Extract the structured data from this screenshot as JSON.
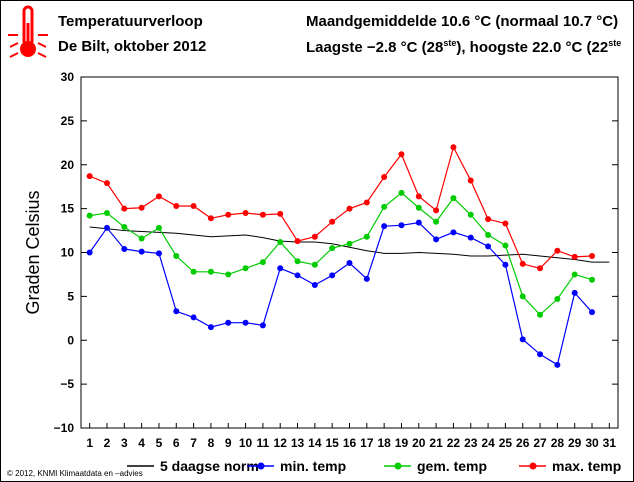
{
  "header": {
    "title": "Temperatuurverloop",
    "subtitle": "De Bilt, oktober 2012",
    "month_avg": "Maandgemiddelde 10.6 °C (normaal 10.7 °C)",
    "extremes_a": "Laagste −2.8 °C (28",
    "extremes_sup1": "ste",
    "extremes_b": "), hoogste 22.0 °C (22",
    "extremes_sup2": "ste"
  },
  "footer": {
    "copyright": "© 2012, KNMI Klimaatdata en –advies"
  },
  "colors": {
    "min": "#0000ff",
    "gem": "#00cc00",
    "max": "#ff0000",
    "norm": "#000000",
    "thermometer": "#ff0000"
  },
  "chart_data": {
    "type": "line",
    "ylabel": "Graden Celsius",
    "xlabel": "",
    "ylim": [
      -10,
      30
    ],
    "yticks": [
      -10,
      -5,
      0,
      5,
      10,
      15,
      20,
      25,
      30
    ],
    "x": [
      1,
      2,
      3,
      4,
      5,
      6,
      7,
      8,
      9,
      10,
      11,
      12,
      13,
      14,
      15,
      16,
      17,
      18,
      19,
      20,
      21,
      22,
      23,
      24,
      25,
      26,
      27,
      28,
      29,
      30,
      31
    ],
    "grid": false,
    "legend_position": "bottom",
    "series": [
      {
        "name": "5 daagse norm",
        "key": "norm",
        "markers": false,
        "values": [
          12.9,
          12.7,
          12.5,
          12.4,
          12.3,
          12.2,
          12.0,
          11.8,
          11.9,
          12.0,
          11.7,
          11.3,
          11.2,
          11.2,
          11.0,
          10.6,
          10.2,
          9.9,
          9.9,
          10.0,
          9.9,
          9.8,
          9.6,
          9.6,
          9.7,
          9.8,
          9.6,
          9.4,
          9.2,
          8.9,
          8.9
        ]
      },
      {
        "name": "min. temp",
        "key": "min",
        "markers": true,
        "values": [
          10.0,
          12.8,
          10.4,
          10.1,
          9.9,
          3.3,
          2.6,
          1.5,
          2.0,
          2.0,
          1.7,
          8.2,
          7.4,
          6.3,
          7.4,
          8.8,
          7.0,
          13.0,
          13.1,
          13.4,
          11.5,
          12.3,
          11.7,
          10.7,
          8.6,
          0.1,
          -1.6,
          -2.8,
          5.4,
          3.2,
          null
        ]
      },
      {
        "name": "gem. temp",
        "key": "gem",
        "markers": true,
        "values": [
          14.2,
          14.5,
          12.9,
          11.6,
          12.8,
          9.6,
          7.8,
          7.8,
          7.5,
          8.2,
          8.9,
          11.2,
          9.0,
          8.6,
          10.5,
          11.0,
          11.8,
          15.2,
          16.8,
          15.1,
          13.5,
          16.2,
          14.3,
          12.0,
          10.8,
          5.0,
          2.9,
          4.7,
          7.5,
          6.9,
          null
        ]
      },
      {
        "name": "max. temp",
        "key": "max",
        "markers": true,
        "values": [
          18.7,
          17.9,
          15.0,
          15.1,
          16.4,
          15.3,
          15.3,
          13.9,
          14.3,
          14.5,
          14.3,
          14.4,
          11.3,
          11.8,
          13.5,
          15.0,
          15.7,
          18.6,
          21.2,
          16.4,
          14.8,
          22.0,
          18.2,
          13.8,
          13.3,
          8.7,
          8.2,
          10.2,
          9.5,
          9.6,
          null
        ]
      }
    ]
  }
}
